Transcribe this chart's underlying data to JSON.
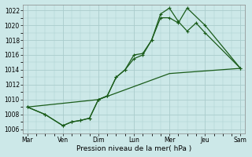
{
  "xlabel": "Pression niveau de la mer( hPa )",
  "bg_color": "#cce8e8",
  "grid_color": "#aacccc",
  "line_color": "#1a5c1a",
  "ylim": [
    1005.5,
    1022.8
  ],
  "yticks": [
    1006,
    1008,
    1010,
    1012,
    1014,
    1016,
    1018,
    1020,
    1022
  ],
  "xlim": [
    -0.5,
    24.5
  ],
  "xtick_positions": [
    0,
    4,
    8,
    12,
    16,
    20,
    24
  ],
  "xtick_labels": [
    "Mar",
    "Ven",
    "Dim",
    "Lun",
    "Mer",
    "Jeu",
    "Sam"
  ],
  "line1_x": [
    0,
    2,
    4,
    5,
    6,
    7,
    8,
    9,
    10,
    11,
    12,
    13,
    14,
    15,
    16,
    17,
    18,
    20,
    24
  ],
  "line1_y": [
    1009.0,
    1008.0,
    1006.5,
    1007.0,
    1007.2,
    1007.5,
    1010.0,
    1010.5,
    1013.0,
    1014.0,
    1015.5,
    1016.0,
    1018.0,
    1021.0,
    1021.0,
    1020.3,
    1022.3,
    1020.0,
    1014.2
  ],
  "line2_x": [
    0,
    2,
    4,
    5,
    6,
    7,
    8,
    9,
    10,
    11,
    12,
    13,
    14,
    15,
    16,
    17,
    18,
    19,
    20,
    24
  ],
  "line2_y": [
    1009.0,
    1008.0,
    1006.5,
    1007.0,
    1007.2,
    1007.5,
    1010.0,
    1010.5,
    1013.0,
    1014.0,
    1016.0,
    1016.2,
    1018.0,
    1021.5,
    1022.3,
    1020.5,
    1019.2,
    1020.3,
    1019.0,
    1014.2
  ],
  "line3_x": [
    0,
    8,
    16,
    24
  ],
  "line3_y": [
    1009.0,
    1010.0,
    1013.5,
    1014.2
  ],
  "marker_style": "+"
}
